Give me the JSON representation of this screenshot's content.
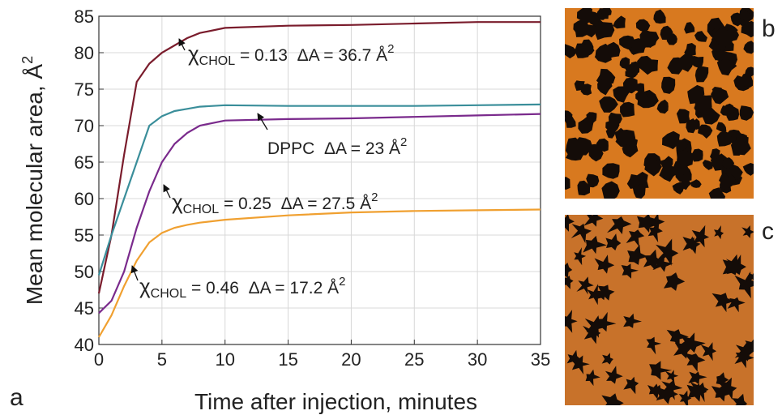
{
  "chart_data": {
    "type": "line",
    "x_label": "Time after injection, minutes",
    "y_label": {
      "text": "Mean molecular area, Å",
      "superscript": "2"
    },
    "x": [
      0,
      1,
      2,
      3,
      4,
      5,
      6,
      7,
      8,
      10,
      15,
      20,
      25,
      30,
      35
    ],
    "series": [
      {
        "color": "#7a1c2c",
        "values": [
          47,
          55,
          66,
          76,
          78.5,
          80,
          81,
          82,
          82.7,
          83.4,
          83.7,
          83.8,
          84,
          84.2,
          84.2
        ]
      },
      {
        "color": "#3a8e9a",
        "values": [
          49.5,
          55,
          60,
          65,
          70,
          71.3,
          72,
          72.3,
          72.6,
          72.8,
          72.7,
          72.7,
          72.7,
          72.8,
          72.9
        ]
      },
      {
        "color": "#7a2a8c",
        "values": [
          44.3,
          46,
          50,
          56,
          61,
          65,
          67.5,
          69,
          70,
          70.7,
          70.9,
          71,
          71.2,
          71.4,
          71.6
        ]
      },
      {
        "color": "#f0a030",
        "values": [
          41,
          44,
          48,
          51.5,
          54,
          55.3,
          56,
          56.4,
          56.7,
          57.1,
          57.7,
          58.1,
          58.3,
          58.4,
          58.5
        ]
      }
    ],
    "annotations": [
      {
        "symbol": "χ",
        "subscript": "CHOL",
        "text": " = 0.13  ΔA = 36.7 Å",
        "superscript": "2"
      },
      {
        "text": "DPPC  ΔA = 23 Å",
        "superscript": "2"
      },
      {
        "symbol": "χ",
        "subscript": "CHOL",
        "text": " = 0.25  ΔA = 27.5 Å",
        "superscript": "2"
      },
      {
        "symbol": "χ",
        "subscript": "CHOL",
        "text": " = 0.46  ΔA = 17.2 Å",
        "superscript": "2"
      }
    ],
    "xlim": [
      0,
      35
    ],
    "ylim": [
      40,
      85
    ],
    "xticks": [
      0,
      5,
      10,
      15,
      20,
      25,
      30,
      35
    ],
    "yticks": [
      40,
      45,
      50,
      55,
      60,
      65,
      70,
      75,
      80,
      85
    ],
    "grid": true
  },
  "panel_labels": [
    "a",
    "b",
    "c"
  ]
}
